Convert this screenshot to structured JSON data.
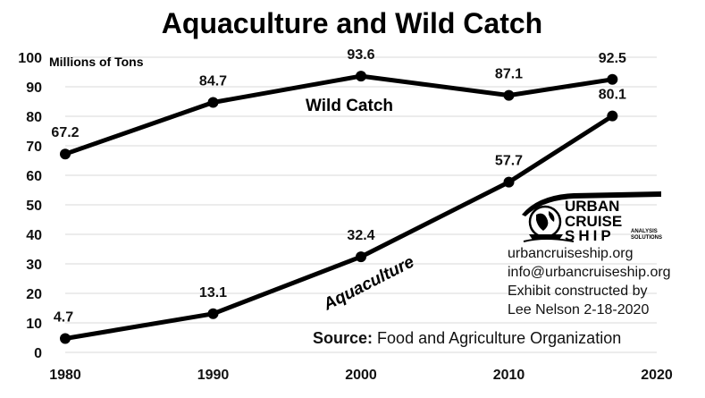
{
  "chart_data": {
    "type": "line",
    "title": "Aquaculture and Wild Catch",
    "ylabel": "Millions of Tons",
    "xlabel": "",
    "xlim": [
      1980,
      2020
    ],
    "ylim": [
      0,
      100
    ],
    "x_ticks": [
      "1980",
      "1990",
      "2000",
      "2010",
      "2020"
    ],
    "y_ticks": [
      "0",
      "10",
      "20",
      "30",
      "40",
      "50",
      "60",
      "70",
      "80",
      "90",
      "100"
    ],
    "grid": "horizontal",
    "series": [
      {
        "name": "Wild Catch",
        "points": [
          {
            "x": 1980,
            "y": 67.2,
            "label": "67.2"
          },
          {
            "x": 1990,
            "y": 84.7,
            "label": "84.7"
          },
          {
            "x": 2000,
            "y": 93.6,
            "label": "93.6"
          },
          {
            "x": 2010,
            "y": 87.1,
            "label": "87.1"
          },
          {
            "x": 2017,
            "y": 92.5,
            "label": "92.5"
          }
        ]
      },
      {
        "name": "Aquaculture",
        "points": [
          {
            "x": 1980,
            "y": 4.7,
            "label": "4.7"
          },
          {
            "x": 1990,
            "y": 13.1,
            "label": "13.1"
          },
          {
            "x": 2000,
            "y": 32.4,
            "label": "32.4"
          },
          {
            "x": 2010,
            "y": 57.7,
            "label": "57.7"
          },
          {
            "x": 2017,
            "y": 80.1,
            "label": "80.1"
          }
        ]
      }
    ],
    "colors": {
      "line": "#000000",
      "grid": "#d9d9d9"
    }
  },
  "logo": {
    "line1": "URBAN",
    "line2": "CRUISE",
    "line3": "SHIP",
    "tagline1": "ANALYSIS",
    "tagline2": "SOLUTIONS",
    "icon": "globe-ship-icon"
  },
  "info": {
    "website": "urbancruiseship.org",
    "email": "info@urbancruiseship.org",
    "credit1": "Exhibit constructed by",
    "credit2": "Lee Nelson 2-18-2020"
  },
  "source": {
    "label": "Source:",
    "text": "Food and Agriculture Organization"
  }
}
